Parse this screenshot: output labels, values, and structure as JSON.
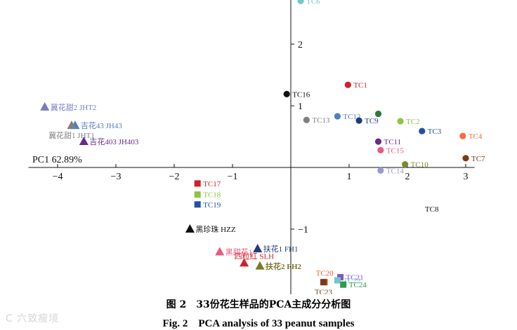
{
  "chart_data": {
    "type": "scatter",
    "xlabel": "PC1 62.89%",
    "xlim": [
      -4.5,
      3.15
    ],
    "ylim": [
      -2.15,
      2.7
    ],
    "x_ticks": [
      -4,
      -3,
      -2,
      -1,
      1,
      2,
      3
    ],
    "y_ticks": [
      2,
      1,
      -1
    ],
    "points": [
      {
        "label": "TC6",
        "x": 0.17,
        "y": 2.7,
        "marker": "circle",
        "color": "#6ec9c9",
        "anchor": "right"
      },
      {
        "label": "TC16",
        "x": -0.07,
        "y": 1.19,
        "marker": "circle",
        "color": "#111111",
        "anchor": "right"
      },
      {
        "label": "TC1",
        "x": 0.98,
        "y": 1.34,
        "marker": "circle",
        "color": "#d0202a",
        "anchor": "right"
      },
      {
        "label": "TC13",
        "x": 0.27,
        "y": 0.77,
        "marker": "circle",
        "color": "#808080",
        "anchor": "right"
      },
      {
        "label": "TC12",
        "x": 0.8,
        "y": 0.83,
        "marker": "circle",
        "color": "#4f7fc0",
        "anchor": "right"
      },
      {
        "label": "TC9",
        "x": 1.17,
        "y": 0.76,
        "marker": "circle",
        "color": "#223a7a",
        "anchor": "right"
      },
      {
        "label": "",
        "x": 1.5,
        "y": 0.87,
        "marker": "circle",
        "color": "#2d7a3a",
        "anchor": "right"
      },
      {
        "label": "TC2",
        "x": 1.88,
        "y": 0.75,
        "marker": "circle",
        "color": "#8cc63f",
        "anchor": "right"
      },
      {
        "label": "TC3",
        "x": 2.25,
        "y": 0.59,
        "marker": "circle",
        "color": "#2050a8",
        "anchor": "right"
      },
      {
        "label": "TC4",
        "x": 2.95,
        "y": 0.51,
        "marker": "circle",
        "color": "#f07040",
        "anchor": "right"
      },
      {
        "label": "TC11",
        "x": 1.5,
        "y": 0.42,
        "marker": "circle",
        "color": "#6a2a8a",
        "anchor": "right"
      },
      {
        "label": "TC15",
        "x": 1.54,
        "y": 0.28,
        "marker": "circle",
        "color": "#e85a80",
        "anchor": "right"
      },
      {
        "label": "TC7",
        "x": 3.0,
        "y": 0.15,
        "marker": "circle",
        "color": "#7a3a1a",
        "anchor": "right"
      },
      {
        "label": "TC10",
        "x": 1.96,
        "y": 0.05,
        "marker": "circle",
        "color": "#7a8a2a",
        "anchor": "right"
      },
      {
        "label": "TC14",
        "x": 1.54,
        "y": -0.05,
        "marker": "circle",
        "color": "#9a9ad0",
        "anchor": "right"
      },
      {
        "label": "冀花甜2 JHT2",
        "x": -4.22,
        "y": 0.98,
        "marker": "triangle",
        "color": "#7a7ac0",
        "anchor": "right"
      },
      {
        "label": "吉花43 JH43",
        "x": -3.7,
        "y": 0.68,
        "marker": "triangle",
        "color": "#4f7fc0",
        "anchor": "right"
      },
      {
        "label": "冀花甜1 JHT1",
        "x": -3.76,
        "y": 0.68,
        "marker": "triangle",
        "color": "#808080",
        "anchor": "below"
      },
      {
        "label": "吉花403 JH403",
        "x": -3.55,
        "y": 0.42,
        "marker": "triangle",
        "color": "#6a2a8a",
        "anchor": "right"
      },
      {
        "label": "TC17",
        "x": -1.6,
        "y": -0.26,
        "marker": "square",
        "color": "#d0202a",
        "anchor": "right"
      },
      {
        "label": "TC18",
        "x": -1.6,
        "y": -0.44,
        "marker": "square",
        "color": "#8cc63f",
        "anchor": "right"
      },
      {
        "label": "TC19",
        "x": -1.6,
        "y": -0.6,
        "marker": "square",
        "color": "#2050a8",
        "anchor": "right"
      },
      {
        "label": "TC8",
        "x": 2.3,
        "y": -0.67,
        "marker": "none",
        "color": "#111111",
        "anchor": "right"
      },
      {
        "label": "黑珍珠 HZZ",
        "x": -1.73,
        "y": -1.0,
        "marker": "triangle",
        "color": "#111111",
        "anchor": "right"
      },
      {
        "label": "扶花1 FH1",
        "x": -0.57,
        "y": -1.32,
        "marker": "triangle",
        "color": "#223a7a",
        "anchor": "right"
      },
      {
        "label": "黑甜花1",
        "x": -1.22,
        "y": -1.37,
        "marker": "triangle",
        "color": "#e85a80",
        "anchor": "right"
      },
      {
        "label": "四粒红 SLH",
        "x": -0.8,
        "y": -1.55,
        "marker": "triangle",
        "color": "#d0202a",
        "anchor": "above-right"
      },
      {
        "label": "扶花2 FH2",
        "x": -0.53,
        "y": -1.6,
        "marker": "triangle",
        "color": "#7a7a2a",
        "anchor": "right"
      },
      {
        "label": "TC20",
        "x": 0.58,
        "y": -1.86,
        "marker": "square",
        "color": "#e85a2a",
        "anchor": "above"
      },
      {
        "label": "TC21",
        "x": 0.85,
        "y": -1.78,
        "marker": "square",
        "color": "#8a50c0",
        "anchor": "right"
      },
      {
        "label": "TC22",
        "x": 0.8,
        "y": -1.83,
        "marker": "square",
        "color": "#6ec9c9",
        "anchor": "right"
      },
      {
        "label": "TC24",
        "x": 0.9,
        "y": -1.9,
        "marker": "square",
        "color": "#2d9a50",
        "anchor": "right"
      },
      {
        "label": "TC23",
        "x": 0.56,
        "y": -1.86,
        "marker": "square",
        "color": "#7a3a1a",
        "anchor": "below"
      }
    ]
  },
  "caption": {
    "chinese": "图 2　33份花生样品的PCA主成分分析图",
    "english": "Fig. 2　PCA analysis of 33 peanut samples"
  },
  "watermark": "C 六致瘦境"
}
